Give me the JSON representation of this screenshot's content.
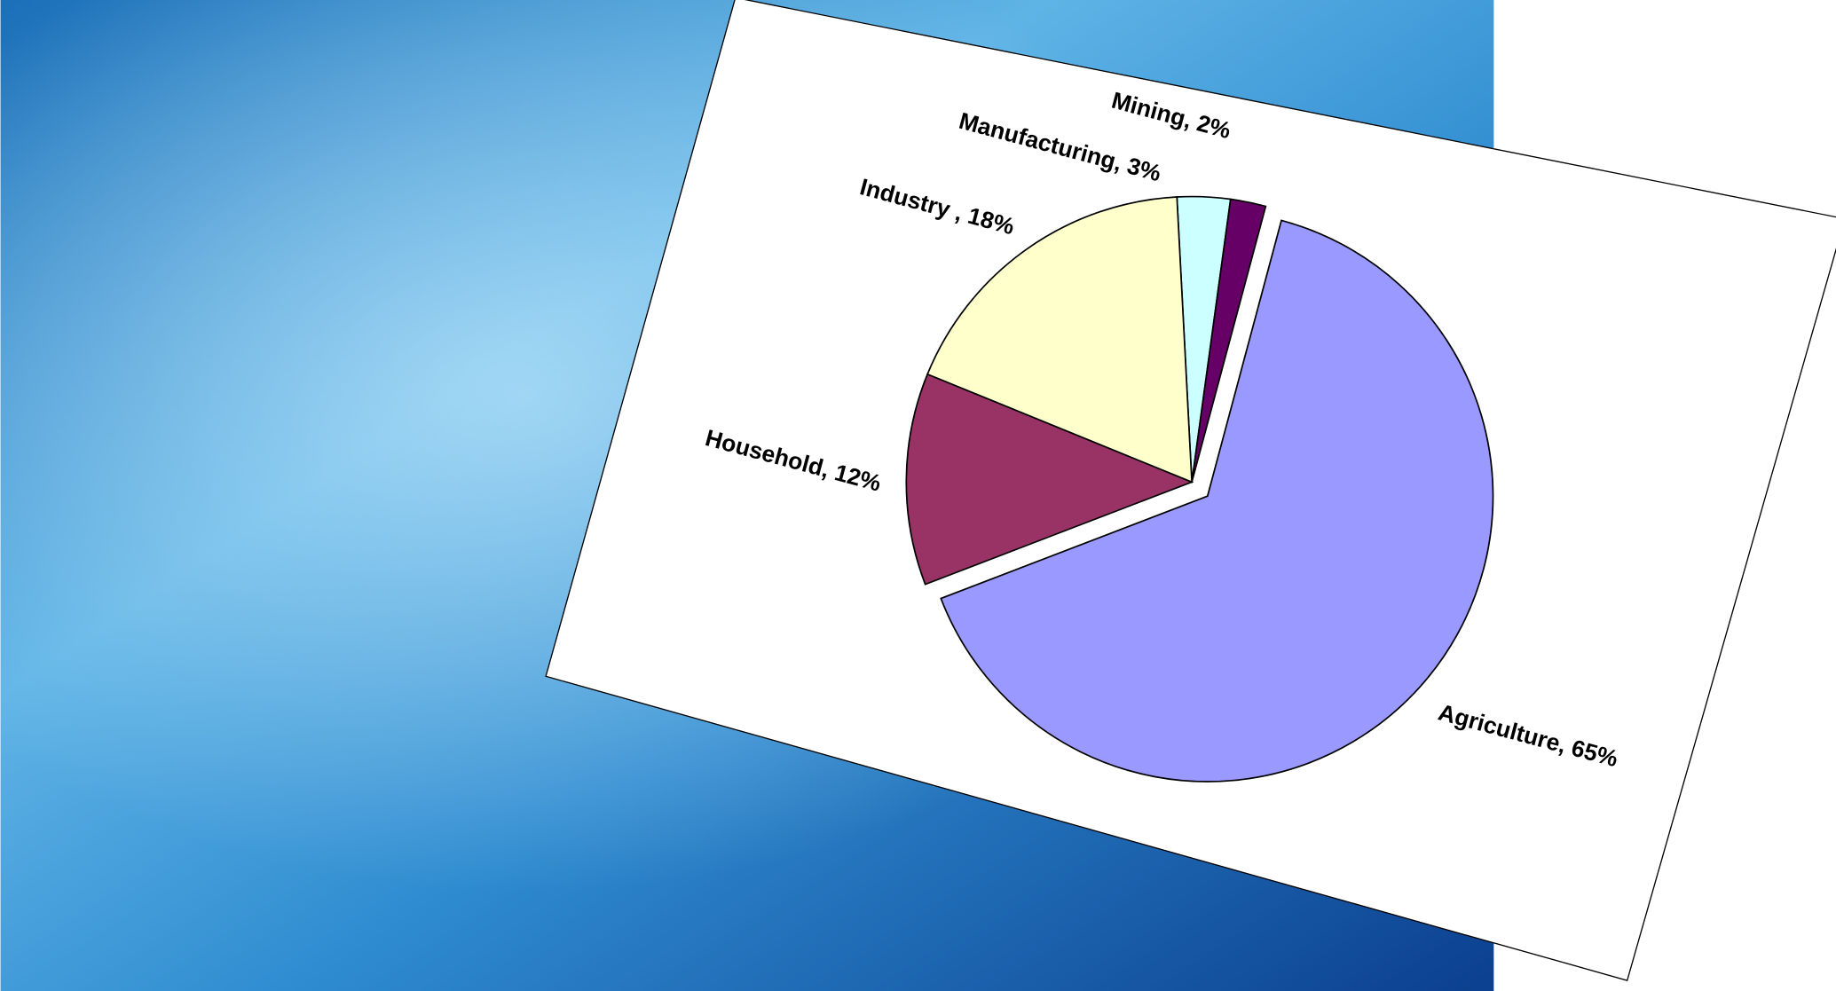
{
  "chart_data": {
    "type": "pie",
    "categories": [
      "Manufacturing",
      "Mining",
      "Agriculture",
      "Household",
      "Industry"
    ],
    "values": [
      3,
      2,
      65,
      12,
      18
    ],
    "value_labels": [
      "Manufacturing, 3%",
      "Mining, 2%",
      "Agriculture, 65%",
      "Household, 12%",
      "Industry , 18%"
    ],
    "colors": [
      "#ccffff",
      "#660066",
      "#9999ff",
      "#993366",
      "#ffffcc"
    ],
    "exploded": [
      false,
      false,
      true,
      false,
      false
    ]
  }
}
